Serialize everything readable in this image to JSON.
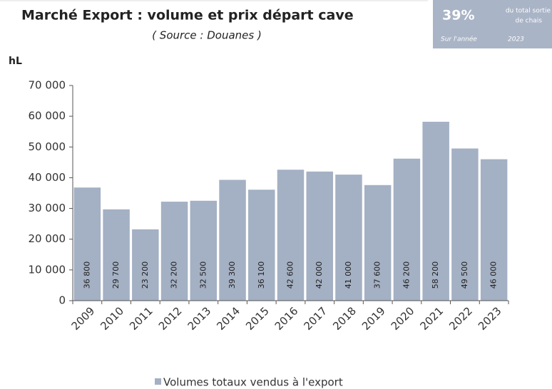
{
  "chart_data": {
    "type": "bar",
    "title": "Marché Export : volume et prix départ cave",
    "subtitle": "( Source : Douanes )",
    "y_label": "hL",
    "badge": {
      "value": "39%",
      "text1": "du total sortie",
      "text2": "de chais",
      "text3": "Sur l'année",
      "text4": "2023"
    },
    "categories": [
      "2009",
      "2010",
      "2011",
      "2012",
      "2013",
      "2014",
      "2015",
      "2016",
      "2017",
      "2018",
      "2019",
      "2020",
      "2021",
      "2022",
      "2023"
    ],
    "series": [
      {
        "name": "Volumes totaux vendus à l'export",
        "color": "#a4b0c3",
        "values": [
          36800,
          29700,
          23200,
          32200,
          32500,
          39300,
          36100,
          42600,
          42000,
          41000,
          37600,
          46200,
          58200,
          49500,
          46000
        ],
        "value_labels": [
          "36 800",
          "29 700",
          "23 200",
          "32 200",
          "32 500",
          "39 300",
          "36 100",
          "42 600",
          "42 000",
          "41 000",
          "37 600",
          "46 200",
          "58 200",
          "49 500",
          "46 000"
        ]
      }
    ],
    "ylim": [
      0,
      70000
    ],
    "yticks": [
      0,
      {
        "value": 10000,
        "label": "10 000"
      },
      {
        "value": 20000,
        "label": "20 000"
      },
      {
        "value": 30000,
        "label": "30 000"
      },
      {
        "value": 40000,
        "label": "40 000"
      },
      {
        "value": 50000,
        "label": "50 000"
      },
      {
        "value": 60000,
        "label": "60 000"
      },
      {
        "value": 70000,
        "label": "70 000"
      }
    ],
    "legend": "bottom"
  }
}
